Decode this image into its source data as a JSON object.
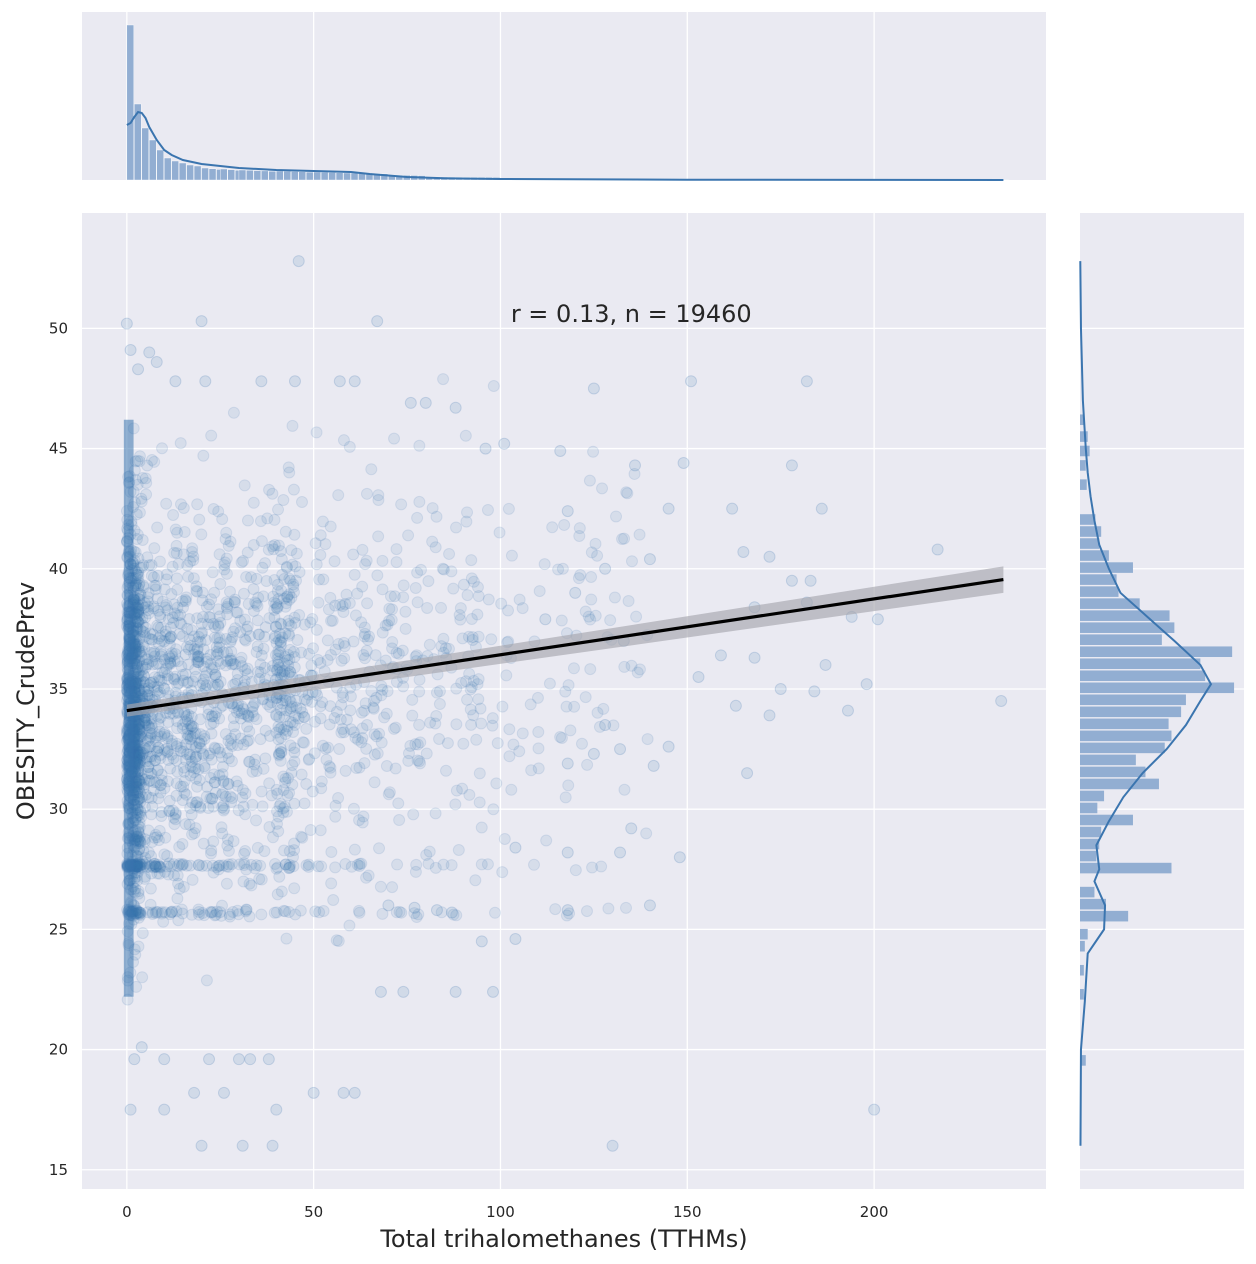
{
  "chart_data": {
    "type": "scatter",
    "subtype": "jointplot",
    "xlabel": "Total trihalomethanes (TTHMs)",
    "ylabel": "OBESITY_CrudePrev",
    "xlim": [
      -12,
      246
    ],
    "ylim": [
      14.2,
      54.8
    ],
    "x_ticks": [
      0,
      50,
      100,
      150,
      200
    ],
    "y_ticks": [
      15,
      20,
      25,
      30,
      35,
      40,
      45,
      50
    ],
    "grid": true,
    "annotation": {
      "text": "r = 0.13, n = 19460",
      "x": 135,
      "y": 50.6
    },
    "regression": {
      "x": [
        0,
        234.6
      ],
      "y": [
        34.1,
        39.55
      ],
      "ci_start": 0.25,
      "ci_end": 0.55
    },
    "sample_points": [
      [
        0,
        50.2
      ],
      [
        20,
        50.3
      ],
      [
        67,
        50.3
      ],
      [
        46,
        52.8
      ],
      [
        1,
        49.1
      ],
      [
        3,
        48.3
      ],
      [
        6,
        49.0
      ],
      [
        8,
        48.6
      ],
      [
        13,
        47.8
      ],
      [
        21,
        47.8
      ],
      [
        36,
        47.8
      ],
      [
        45,
        47.8
      ],
      [
        57,
        47.8
      ],
      [
        61,
        47.8
      ],
      [
        125,
        47.5
      ],
      [
        151,
        47.8
      ],
      [
        182,
        47.8
      ],
      [
        76,
        46.9
      ],
      [
        80,
        46.9
      ],
      [
        88,
        46.7
      ],
      [
        96,
        45.0
      ],
      [
        101,
        45.2
      ],
      [
        116,
        44.9
      ],
      [
        136,
        44.3
      ],
      [
        149,
        44.4
      ],
      [
        178,
        44.3
      ],
      [
        118,
        42.4
      ],
      [
        145,
        42.5
      ],
      [
        162,
        42.5
      ],
      [
        186,
        42.5
      ],
      [
        140,
        40.4
      ],
      [
        165,
        40.7
      ],
      [
        172,
        40.5
      ],
      [
        217,
        40.8
      ],
      [
        178,
        39.5
      ],
      [
        183,
        39.5
      ],
      [
        168,
        38.4
      ],
      [
        182,
        38.6
      ],
      [
        194,
        38.0
      ],
      [
        201,
        37.9
      ],
      [
        159,
        36.4
      ],
      [
        168,
        36.3
      ],
      [
        187,
        36.0
      ],
      [
        153,
        35.5
      ],
      [
        175,
        35.0
      ],
      [
        184,
        34.9
      ],
      [
        198,
        35.2
      ],
      [
        234,
        34.5
      ],
      [
        193,
        34.1
      ],
      [
        163,
        34.3
      ],
      [
        172,
        33.9
      ],
      [
        145,
        32.6
      ],
      [
        132,
        32.5
      ],
      [
        166,
        31.5
      ],
      [
        118,
        31.9
      ],
      [
        135,
        29.2
      ],
      [
        148,
        28.0
      ],
      [
        118,
        28.2
      ],
      [
        132,
        28.2
      ],
      [
        104,
        28.4
      ],
      [
        200,
        17.5
      ],
      [
        130,
        16.0
      ],
      [
        1,
        17.5
      ],
      [
        10,
        17.5
      ],
      [
        18,
        18.2
      ],
      [
        26,
        18.2
      ],
      [
        40,
        17.5
      ],
      [
        50,
        18.2
      ],
      [
        58,
        18.2
      ],
      [
        61,
        18.2
      ],
      [
        4,
        20.1
      ],
      [
        20,
        16.0
      ],
      [
        31,
        16.0
      ],
      [
        39,
        16.0
      ],
      [
        2,
        19.6
      ],
      [
        10,
        19.6
      ],
      [
        22,
        19.6
      ],
      [
        30,
        19.6
      ],
      [
        33,
        19.6
      ],
      [
        38,
        19.6
      ],
      [
        68,
        22.4
      ],
      [
        74,
        22.4
      ],
      [
        88,
        22.4
      ],
      [
        98,
        22.4
      ],
      [
        87,
        25.7
      ],
      [
        95,
        24.5
      ],
      [
        104,
        24.6
      ],
      [
        118,
        25.8
      ],
      [
        140,
        26.0
      ],
      [
        70,
        26.0
      ],
      [
        77,
        25.9
      ],
      [
        83,
        25.8
      ],
      [
        125,
        32.3
      ],
      [
        141,
        31.8
      ],
      [
        128,
        33.5
      ],
      [
        112,
        37.9
      ],
      [
        120,
        39.0
      ],
      [
        128,
        40.0
      ],
      [
        133,
        37.0
      ]
    ],
    "x_marginal": {
      "bin_edges": [
        0,
        2,
        4,
        6,
        8,
        10,
        12,
        14,
        16,
        18,
        20,
        25,
        30,
        40,
        50,
        60,
        70,
        80,
        100,
        150,
        234.6
      ],
      "heights": [
        155,
        76,
        52,
        40,
        30,
        22,
        19,
        17,
        15,
        14,
        12,
        11,
        10,
        9,
        8,
        7,
        5,
        3,
        1.5,
        0.6
      ],
      "kde": [
        [
          0,
          55
        ],
        [
          1,
          57
        ],
        [
          2,
          63
        ],
        [
          3,
          68
        ],
        [
          4,
          67
        ],
        [
          5,
          62
        ],
        [
          6,
          53
        ],
        [
          8,
          40
        ],
        [
          10,
          30
        ],
        [
          12,
          25
        ],
        [
          15,
          20
        ],
        [
          20,
          16
        ],
        [
          30,
          12
        ],
        [
          40,
          10
        ],
        [
          50,
          9
        ],
        [
          60,
          8
        ],
        [
          65,
          6
        ],
        [
          70,
          4.5
        ],
        [
          75,
          3
        ],
        [
          85,
          1.8
        ],
        [
          100,
          1.0
        ],
        [
          150,
          0.3
        ],
        [
          234.6,
          0.05
        ]
      ],
      "ymax": 160
    },
    "y_marginal": {
      "bins": [
        [
          25.55,
          50
        ],
        [
          26.05,
          27
        ],
        [
          26.55,
          15
        ],
        [
          27.55,
          95
        ],
        [
          28.05,
          17
        ],
        [
          28.55,
          20
        ],
        [
          29.05,
          22
        ],
        [
          29.55,
          55
        ],
        [
          30.05,
          18
        ],
        [
          30.55,
          25
        ],
        [
          31.05,
          82
        ],
        [
          31.55,
          68
        ],
        [
          32.05,
          58
        ],
        [
          32.55,
          88
        ],
        [
          33.05,
          95
        ],
        [
          33.55,
          92
        ],
        [
          34.05,
          105
        ],
        [
          34.55,
          110
        ],
        [
          35.05,
          160
        ],
        [
          35.55,
          130
        ],
        [
          36.05,
          125
        ],
        [
          36.55,
          158
        ],
        [
          37.05,
          85
        ],
        [
          37.55,
          98
        ],
        [
          38.05,
          93
        ],
        [
          38.55,
          62
        ],
        [
          39.05,
          40
        ],
        [
          39.55,
          38
        ],
        [
          40.05,
          55
        ],
        [
          40.55,
          30
        ],
        [
          41.05,
          20
        ],
        [
          41.55,
          22
        ],
        [
          42.05,
          16
        ]
      ],
      "kde": [
        [
          16,
          0.5
        ],
        [
          20,
          1
        ],
        [
          22,
          5
        ],
        [
          24,
          8
        ],
        [
          25,
          25
        ],
        [
          26,
          26
        ],
        [
          27,
          15
        ],
        [
          27.5,
          20
        ],
        [
          28.5,
          17
        ],
        [
          29.5,
          30
        ],
        [
          30.5,
          45
        ],
        [
          31.5,
          65
        ],
        [
          32.5,
          90
        ],
        [
          33.5,
          110
        ],
        [
          34.5,
          125
        ],
        [
          35.2,
          136
        ],
        [
          36,
          125
        ],
        [
          37,
          98
        ],
        [
          38,
          70
        ],
        [
          39,
          42
        ],
        [
          40,
          30
        ],
        [
          41,
          20
        ],
        [
          42,
          15
        ],
        [
          43,
          11
        ],
        [
          44,
          8
        ],
        [
          45,
          6
        ],
        [
          47,
          3
        ],
        [
          50,
          1
        ],
        [
          52.8,
          0.3
        ]
      ],
      "xmax": 162
    },
    "colors": {
      "background": "#eaeaf2",
      "grid": "#ffffff",
      "points": "#3b75af",
      "bars": "#92aed2",
      "kde": "#3b75af",
      "regression": "#000000",
      "ci": "#a6a6ae",
      "text": "#262626"
    }
  }
}
